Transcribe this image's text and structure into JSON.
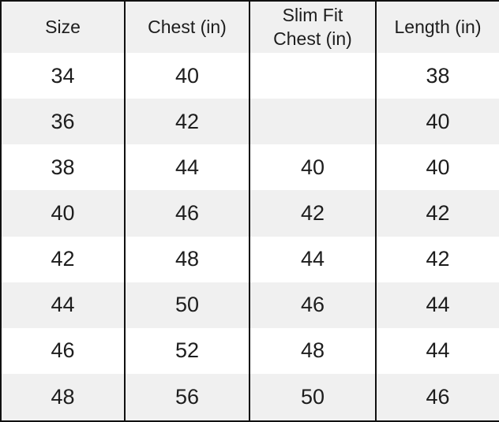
{
  "chart_data": {
    "type": "table",
    "columns": [
      "Size",
      "Chest (in)",
      "Slim Fit\nChest (in)",
      "Length (in)"
    ],
    "rows": [
      [
        "34",
        "40",
        "",
        "38"
      ],
      [
        "36",
        "42",
        "",
        "40"
      ],
      [
        "38",
        "44",
        "40",
        "40"
      ],
      [
        "40",
        "46",
        "42",
        "42"
      ],
      [
        "42",
        "48",
        "44",
        "42"
      ],
      [
        "44",
        "50",
        "46",
        "44"
      ],
      [
        "46",
        "52",
        "48",
        "44"
      ],
      [
        "48",
        "56",
        "50",
        "46"
      ]
    ]
  },
  "colors": {
    "header_bg": "#f0f0f0",
    "row_bg": "#ffffff",
    "row_alt_bg": "#f0f0f0",
    "border": "#111111",
    "text": "#1d1d1d"
  }
}
